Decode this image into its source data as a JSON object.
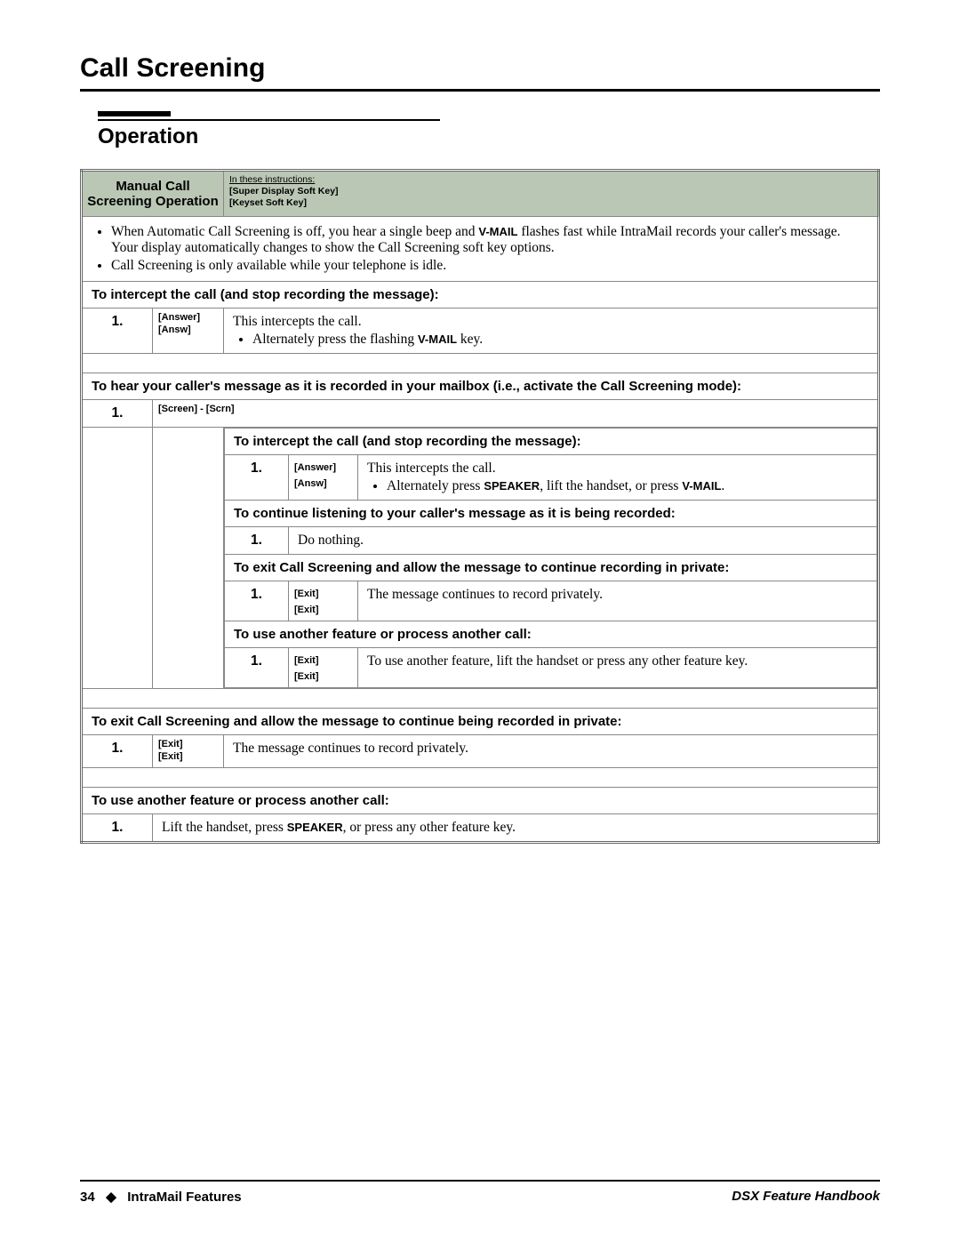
{
  "page_title": "Call Screening",
  "section_title": "Operation",
  "table": {
    "header_center": "Manual Call Screening Operation",
    "header_side_line1": "In these instructions:",
    "header_side_line2": "[Super Display Soft Key]",
    "header_side_line3": "[Keyset Soft Key]",
    "intro_bullet1_pre": "When Automatic Call Screening is off, you hear a single beep and ",
    "intro_bullet1_bold": "V-MAIL",
    "intro_bullet1_post": " flashes fast while IntraMail records your caller's message. Your display automatically changes to show the Call Screening soft key options.",
    "intro_bullet2": "Call Screening is only available while your telephone is idle.",
    "sub1": "To intercept the call (and stop recording the message):",
    "row1_num": "1.",
    "row1_key1": "[Answer]",
    "row1_key2": "[Answ]",
    "row1_desc1": "This intercepts the call.",
    "row1_desc2_pre": "Alternately press the flashing ",
    "row1_desc2_bold": "V-MAIL",
    "row1_desc2_post": " key.",
    "sub2": "To hear your caller's message as it is recorded in your mailbox (i.e., activate the Call Screening mode):",
    "row2_num": "1.",
    "row2_key": "[Screen] - [Scrn]",
    "inner": {
      "isub1": "To intercept the call (and stop recording the message):",
      "ir1_num": "1.",
      "ir1_key1": "[Answer]",
      "ir1_key2": "[Answ]",
      "ir1_desc1": "This intercepts the call.",
      "ir1_desc2_pre": "Alternately press ",
      "ir1_desc2_b1": "SPEAKER",
      "ir1_desc2_mid": ", lift the handset, or press ",
      "ir1_desc2_b2": "V-MAIL",
      "ir1_desc2_post": ".",
      "isub2": "To continue listening to your caller's message as it is being recorded:",
      "ir2_num": "1.",
      "ir2_desc": "Do nothing.",
      "isub3": "To exit Call Screening and allow the message to continue recording in private:",
      "ir3_num": "1.",
      "ir3_key1": "[Exit]",
      "ir3_key2": "[Exit]",
      "ir3_desc": "The message continues to record privately.",
      "isub4": "To use another feature or process another call:",
      "ir4_num": "1.",
      "ir4_key1": "[Exit]",
      "ir4_key2": "[Exit]",
      "ir4_desc": "To use another feature, lift the handset or press any other feature key."
    },
    "sub3": "To exit Call Screening and allow the message to continue being recorded in private:",
    "row3_num": "1.",
    "row3_key1": "[Exit]",
    "row3_key2": "[Exit]",
    "row3_desc": "The message continues to record privately.",
    "sub4": "To use another feature or process another call:",
    "row4_num": "1.",
    "row4_desc_pre": "Lift the handset, press ",
    "row4_desc_bold": "SPEAKER",
    "row4_desc_post": ", or press any other feature key."
  },
  "footer": {
    "page_num": "34",
    "diamond": "◆",
    "left_text": "IntraMail Features",
    "right_text": "DSX Feature Handbook"
  },
  "colors": {
    "header_bg": "#bac7b4",
    "border": "#888888",
    "text": "#000000"
  }
}
